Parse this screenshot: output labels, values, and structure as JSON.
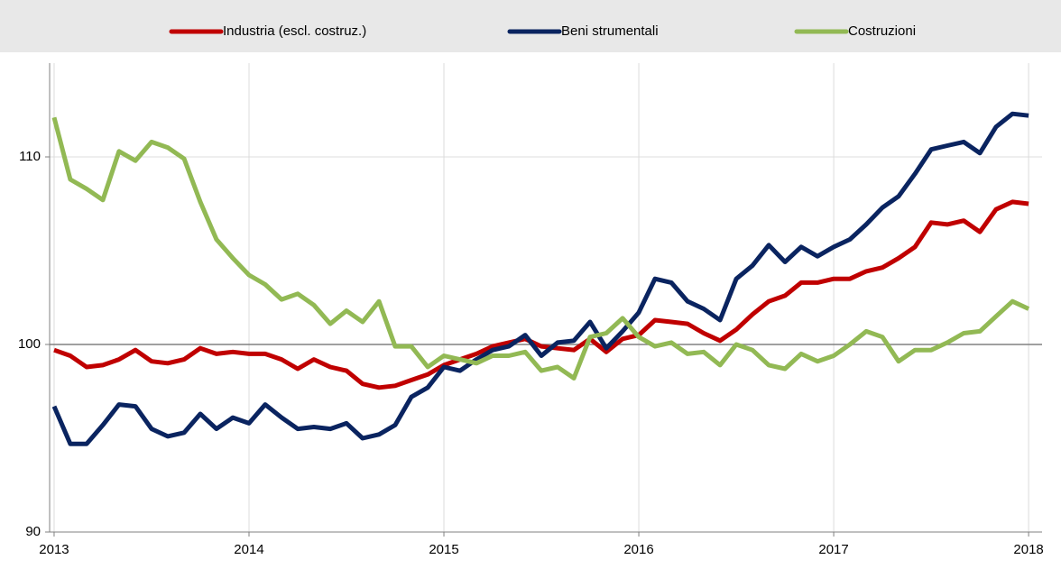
{
  "chart_data": {
    "type": "line",
    "x": [
      2013,
      2013.083,
      2013.167,
      2013.25,
      2013.333,
      2013.417,
      2013.5,
      2013.583,
      2013.667,
      2013.75,
      2013.833,
      2013.917,
      2014,
      2014.083,
      2014.167,
      2014.25,
      2014.333,
      2014.417,
      2014.5,
      2014.583,
      2014.667,
      2014.75,
      2014.833,
      2014.917,
      2015,
      2015.083,
      2015.167,
      2015.25,
      2015.333,
      2015.417,
      2015.5,
      2015.583,
      2015.667,
      2015.75,
      2015.833,
      2015.917,
      2016,
      2016.083,
      2016.167,
      2016.25,
      2016.333,
      2016.417,
      2016.5,
      2016.583,
      2016.667,
      2016.75,
      2016.833,
      2016.917,
      2017,
      2017.083,
      2017.167,
      2017.25,
      2017.333,
      2017.417,
      2017.5,
      2017.583,
      2017.667,
      2017.75,
      2017.833,
      2017.917,
      2018
    ],
    "series": [
      {
        "name": "Industria (escl. costruz.)",
        "color": "#c00000",
        "values": [
          99.7,
          99.4,
          98.8,
          98.9,
          99.2,
          99.7,
          99.1,
          99.0,
          99.2,
          99.8,
          99.5,
          99.6,
          99.5,
          99.5,
          99.2,
          98.7,
          99.2,
          98.8,
          98.6,
          97.9,
          97.7,
          97.8,
          98.1,
          98.4,
          98.9,
          99.2,
          99.5,
          99.9,
          100.1,
          100.3,
          99.9,
          99.8,
          99.7,
          100.3,
          99.6,
          100.3,
          100.5,
          101.3,
          101.2,
          101.1,
          100.6,
          100.2,
          100.8,
          101.6,
          102.3,
          102.6,
          103.3,
          103.3,
          103.5,
          103.5,
          103.9,
          104.1,
          104.6,
          105.2,
          106.5,
          106.4,
          106.6,
          106.0,
          107.2,
          107.6,
          107.5
        ]
      },
      {
        "name": "Beni strumentali",
        "color": "#0a2460",
        "values": [
          96.7,
          94.7,
          94.7,
          95.7,
          96.8,
          96.7,
          95.5,
          95.1,
          95.3,
          96.3,
          95.5,
          96.1,
          95.8,
          96.8,
          96.1,
          95.5,
          95.6,
          95.5,
          95.8,
          95.0,
          95.2,
          95.7,
          97.2,
          97.7,
          98.8,
          98.6,
          99.2,
          99.7,
          99.9,
          100.5,
          99.4,
          100.1,
          100.2,
          101.2,
          99.8,
          100.7,
          101.7,
          103.5,
          103.3,
          102.3,
          101.9,
          101.3,
          103.5,
          104.2,
          105.3,
          104.4,
          105.2,
          104.7,
          105.2,
          105.6,
          106.4,
          107.3,
          107.9,
          109.1,
          110.4,
          110.6,
          110.8,
          110.2,
          111.6,
          112.3,
          112.2
        ]
      },
      {
        "name": "Costruzioni",
        "color": "#92b954",
        "values": [
          112.1,
          108.8,
          108.3,
          107.7,
          110.3,
          109.8,
          110.8,
          110.5,
          109.9,
          107.6,
          105.6,
          104.6,
          103.7,
          103.2,
          102.4,
          102.7,
          102.1,
          101.1,
          101.8,
          101.2,
          102.3,
          99.9,
          99.9,
          98.8,
          99.4,
          99.2,
          99.0,
          99.4,
          99.4,
          99.6,
          98.6,
          98.8,
          98.2,
          100.4,
          100.6,
          101.4,
          100.4,
          99.9,
          100.1,
          99.5,
          99.6,
          98.9,
          100.0,
          99.7,
          98.9,
          98.7,
          99.5,
          99.1,
          99.4,
          100.0,
          100.7,
          100.4,
          99.1,
          99.7,
          99.7,
          100.1,
          100.6,
          100.7,
          101.5,
          102.3,
          101.9
        ]
      }
    ],
    "xlim": [
      2012.977,
      2018.069
    ],
    "xticks": [
      2013,
      2014,
      2015,
      2016,
      2017,
      2018
    ],
    "ylim": [
      90,
      115
    ],
    "yticks": [
      90,
      100,
      110
    ],
    "reference_line": 100,
    "grid": true,
    "legend": "top"
  }
}
